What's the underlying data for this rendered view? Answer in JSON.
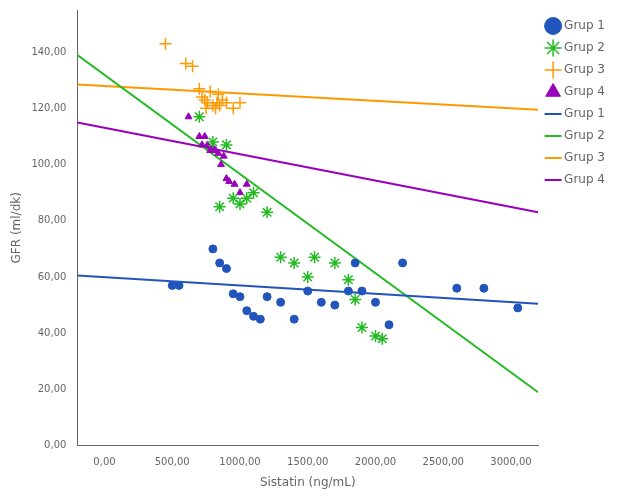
{
  "chart_data": {
    "type": "scatter",
    "xlabel": "Sistatin (ng/mL)",
    "ylabel": "GFR (ml/dk)",
    "xlim": [
      -200,
      3200
    ],
    "ylim": [
      0,
      155
    ],
    "xticks": [
      {
        "value": 0,
        "label": "0,00"
      },
      {
        "value": 500,
        "label": "500,00"
      },
      {
        "value": 1000,
        "label": "1000,00"
      },
      {
        "value": 1500,
        "label": "1500,00"
      },
      {
        "value": 2000,
        "label": "2000,00"
      },
      {
        "value": 2500,
        "label": "2500,00"
      },
      {
        "value": 3000,
        "label": "3000,00"
      }
    ],
    "yticks": [
      {
        "value": 0,
        "label": "0,00"
      },
      {
        "value": 20,
        "label": "20,00"
      },
      {
        "value": 40,
        "label": "40,00"
      },
      {
        "value": 60,
        "label": "60,00"
      },
      {
        "value": 80,
        "label": "80,00"
      },
      {
        "value": 100,
        "label": "100,00"
      },
      {
        "value": 120,
        "label": "120,00"
      },
      {
        "value": 140,
        "label": "140,00"
      }
    ],
    "grid": false,
    "legend": "right",
    "series": [
      {
        "name": "Grup 1",
        "type": "scatter",
        "color": "#2255bb",
        "marker": "circle",
        "x": [
          500,
          550,
          800,
          850,
          900,
          950,
          1000,
          1050,
          1100,
          1150,
          1200,
          1300,
          1400,
          1500,
          1600,
          1700,
          1800,
          1850,
          1900,
          2000,
          2100,
          2200,
          2600,
          2800,
          3050
        ],
        "values": [
          57,
          57,
          70,
          65,
          63,
          54,
          53,
          48,
          46,
          45,
          53,
          51,
          45,
          55,
          51,
          50,
          55,
          65,
          55,
          51,
          43,
          65,
          56,
          56,
          49
        ]
      },
      {
        "name": "Grup 2",
        "type": "scatter",
        "color": "#22bb22",
        "marker": "star",
        "x": [
          700,
          800,
          850,
          900,
          950,
          1000,
          1050,
          1100,
          1200,
          1300,
          1400,
          1500,
          1550,
          1700,
          1800,
          1850,
          1900,
          2000,
          2050
        ],
        "values": [
          117,
          108,
          85,
          107,
          88,
          86,
          88,
          90,
          83,
          67,
          65,
          60,
          67,
          65,
          59,
          52,
          42,
          39,
          38
        ]
      },
      {
        "name": "Grup 3",
        "type": "scatter",
        "color": "#ff9900",
        "marker": "plus",
        "x": [
          450,
          600,
          650,
          700,
          720,
          740,
          750,
          760,
          780,
          800,
          820,
          830,
          840,
          850,
          870,
          900,
          950,
          1000
        ],
        "values": [
          143,
          136,
          135,
          127,
          124,
          123,
          120,
          122,
          126,
          121,
          120,
          122,
          125,
          121,
          123,
          122,
          120,
          122
        ]
      },
      {
        "name": "Grup 4",
        "type": "scatter",
        "color": "#9900bb",
        "marker": "triangle",
        "x": [
          620,
          700,
          720,
          740,
          760,
          780,
          800,
          820,
          840,
          860,
          880,
          900,
          920,
          960,
          1000,
          1050
        ],
        "values": [
          117,
          110,
          107,
          110,
          107,
          105,
          106,
          105,
          104,
          100,
          103,
          95,
          94,
          93,
          90,
          93
        ]
      },
      {
        "name": "Grup 1",
        "type": "line",
        "color": "#2255bb",
        "x": [
          -200,
          3200
        ],
        "values": [
          60.5,
          50.5
        ]
      },
      {
        "name": "Grup 2",
        "type": "line",
        "color": "#22bb22",
        "x": [
          -200,
          3200
        ],
        "values": [
          139,
          19
        ]
      },
      {
        "name": "Grup 3",
        "type": "line",
        "color": "#ff9900",
        "x": [
          -200,
          3200
        ],
        "values": [
          128.5,
          119.5
        ]
      },
      {
        "name": "Grup 4",
        "type": "line",
        "color": "#9900bb",
        "x": [
          -200,
          3200
        ],
        "values": [
          115,
          83
        ]
      }
    ]
  }
}
